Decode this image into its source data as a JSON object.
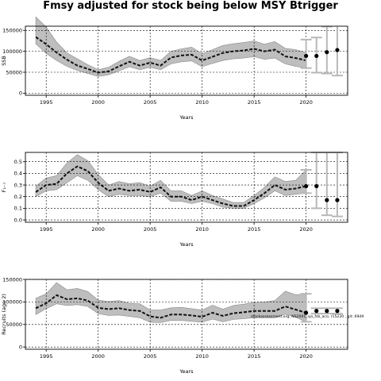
{
  "title": "Fmsy adjusted for stock being below MSY Btrigger",
  "annotation": "stockassessment.org, NS2001_sja_fsb_aco, r15220 , git: 69d9",
  "chart_data": [
    {
      "type": "line",
      "title": "",
      "ylabel": "SSB",
      "xlabel": "Years",
      "xlim": [
        1993,
        2024
      ],
      "ylim": [
        -5000,
        160000
      ],
      "xticks": [
        1995,
        2000,
        2005,
        2010,
        2015,
        2020
      ],
      "yticks": [
        0,
        50000,
        100000,
        150000
      ],
      "grid": true,
      "x": [
        1994,
        1995,
        1996,
        1997,
        1998,
        1999,
        2000,
        2001,
        2002,
        2003,
        2004,
        2005,
        2006,
        2007,
        2008,
        2009,
        2010,
        2011,
        2012,
        2013,
        2014,
        2015,
        2016,
        2017,
        2018,
        2019,
        2020
      ],
      "estimate": [
        134000,
        117000,
        97000,
        80000,
        66000,
        58000,
        49000,
        52000,
        64000,
        75000,
        66000,
        73000,
        66000,
        85000,
        90000,
        92000,
        78000,
        87000,
        96000,
        100000,
        102000,
        106000,
        100000,
        104000,
        88000,
        84000,
        78000
      ],
      "lower": [
        118000,
        95000,
        78000,
        64000,
        54000,
        47000,
        40000,
        44000,
        53000,
        63000,
        56000,
        62000,
        56000,
        70000,
        75000,
        77000,
        63000,
        71000,
        78000,
        82000,
        84000,
        87000,
        81000,
        84000,
        70000,
        64000,
        60000
      ],
      "upper": [
        182000,
        158000,
        122000,
        96000,
        82000,
        68000,
        56000,
        62000,
        76000,
        88000,
        78000,
        85000,
        78000,
        100000,
        106000,
        110000,
        94000,
        104000,
        114000,
        118000,
        121000,
        125000,
        117000,
        123000,
        107000,
        104000,
        97000
      ],
      "forecast": {
        "x": [
          2020,
          2021,
          2022,
          2023
        ],
        "median": [
          89000,
          89000,
          98000,
          103000
        ],
        "low": [
          60000,
          49000,
          47000,
          42000
        ],
        "high": [
          128000,
          133000,
          159000,
          184000
        ]
      }
    },
    {
      "type": "line",
      "title": "",
      "ylabel": "F₁₋₇",
      "xlabel": "Years",
      "xlim": [
        1993,
        2024
      ],
      "ylim": [
        -0.02,
        0.58
      ],
      "xticks": [
        1995,
        2000,
        2005,
        2010,
        2015,
        2020
      ],
      "yticks": [
        0.0,
        0.1,
        0.2,
        0.3,
        0.4,
        0.5
      ],
      "grid": true,
      "x": [
        1994,
        1995,
        1996,
        1997,
        1998,
        1999,
        2000,
        2001,
        2002,
        2003,
        2004,
        2005,
        2006,
        2007,
        2008,
        2009,
        2010,
        2011,
        2012,
        2013,
        2014,
        2015,
        2016,
        2017,
        2018,
        2019,
        2020
      ],
      "estimate": [
        0.24,
        0.3,
        0.31,
        0.4,
        0.46,
        0.42,
        0.32,
        0.25,
        0.27,
        0.25,
        0.26,
        0.24,
        0.28,
        0.2,
        0.2,
        0.17,
        0.2,
        0.17,
        0.14,
        0.12,
        0.12,
        0.17,
        0.23,
        0.3,
        0.26,
        0.27,
        0.29
      ],
      "lower": [
        0.2,
        0.25,
        0.26,
        0.32,
        0.38,
        0.34,
        0.26,
        0.2,
        0.22,
        0.21,
        0.21,
        0.2,
        0.23,
        0.16,
        0.16,
        0.14,
        0.16,
        0.14,
        0.11,
        0.1,
        0.1,
        0.14,
        0.19,
        0.25,
        0.21,
        0.22,
        0.23
      ],
      "upper": [
        0.29,
        0.36,
        0.38,
        0.49,
        0.56,
        0.51,
        0.39,
        0.3,
        0.33,
        0.31,
        0.32,
        0.29,
        0.34,
        0.25,
        0.25,
        0.21,
        0.25,
        0.21,
        0.18,
        0.15,
        0.15,
        0.21,
        0.28,
        0.37,
        0.33,
        0.34,
        0.43
      ],
      "forecast": {
        "x": [
          2020,
          2021,
          2022,
          2023
        ],
        "median": [
          0.29,
          0.29,
          0.17,
          0.17
        ],
        "low": [
          0.23,
          0.1,
          0.04,
          0.03
        ],
        "high": [
          0.43,
          0.58,
          0.58,
          0.58
        ]
      }
    },
    {
      "type": "line",
      "title": "",
      "ylabel": "Recruits (age 2)",
      "xlabel": "Years",
      "xlim": [
        1993,
        2024
      ],
      "ylim": [
        -5000,
        150000
      ],
      "xticks": [
        1995,
        2000,
        2005,
        2010,
        2015,
        2020
      ],
      "yticks": [
        0,
        50000,
        100000,
        150000
      ],
      "grid": true,
      "x": [
        1994,
        1995,
        1996,
        1997,
        1998,
        1999,
        2000,
        2001,
        2002,
        2003,
        2004,
        2005,
        2006,
        2007,
        2008,
        2009,
        2010,
        2011,
        2012,
        2013,
        2014,
        2015,
        2016,
        2017,
        2018,
        2019,
        2020
      ],
      "estimate": [
        86000,
        97000,
        115000,
        106000,
        108000,
        103000,
        87000,
        84000,
        86000,
        82000,
        80000,
        68000,
        65000,
        72000,
        72000,
        70000,
        67000,
        76000,
        69000,
        75000,
        77000,
        80000,
        80000,
        80000,
        90000,
        83000,
        76000
      ],
      "lower": [
        72000,
        85000,
        96000,
        92000,
        94000,
        90000,
        74000,
        70000,
        71000,
        68000,
        65000,
        55000,
        54000,
        59000,
        59000,
        57000,
        55000,
        62000,
        56000,
        61000,
        63000,
        65000,
        65000,
        65000,
        73000,
        66000,
        56000
      ],
      "upper": [
        108000,
        118000,
        143000,
        127000,
        130000,
        123000,
        104000,
        101000,
        103000,
        97000,
        96000,
        82000,
        82000,
        87000,
        88000,
        85000,
        82000,
        93000,
        84000,
        92000,
        95000,
        99000,
        100000,
        103000,
        124000,
        116000,
        118000
      ],
      "forecast": {
        "x": [
          2020,
          2021,
          2022,
          2023
        ],
        "median": [
          76000,
          80000,
          80000,
          80000
        ],
        "low": [
          56000,
          74000,
          74000,
          74000
        ],
        "high": [
          118000,
          86000,
          86000,
          86000
        ]
      }
    }
  ]
}
